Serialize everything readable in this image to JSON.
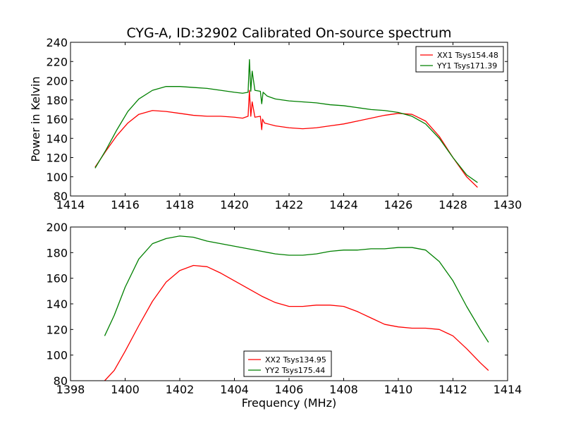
{
  "chart_data": [
    {
      "type": "line",
      "title": "CYG-A, ID:32902 Calibrated On-source spectrum",
      "xlabel": "",
      "ylabel": "Power in Kelvin",
      "xlim": [
        1414,
        1430
      ],
      "ylim": [
        80,
        240
      ],
      "xticks": [
        1414,
        1416,
        1418,
        1420,
        1422,
        1424,
        1426,
        1428,
        1430
      ],
      "yticks": [
        80,
        100,
        120,
        140,
        160,
        180,
        200,
        220,
        240
      ],
      "legend": "top-right",
      "series": [
        {
          "name": "XX1 Tsys154.48",
          "color": "#ff0000",
          "x": [
            1414.9,
            1415.3,
            1415.7,
            1416.1,
            1416.5,
            1417.0,
            1417.5,
            1418.0,
            1418.5,
            1419.0,
            1419.5,
            1420.0,
            1420.3,
            1420.5,
            1420.55,
            1420.6,
            1420.65,
            1420.75,
            1420.95,
            1421.0,
            1421.03,
            1421.1,
            1421.5,
            1422.0,
            1422.5,
            1423.0,
            1423.5,
            1424.0,
            1424.5,
            1425.0,
            1425.5,
            1426.0,
            1426.5,
            1427.0,
            1427.5,
            1428.0,
            1428.5,
            1428.9
          ],
          "y": [
            110,
            127,
            143,
            156,
            165,
            169,
            168,
            166,
            164,
            163,
            163,
            162,
            161,
            163,
            190,
            163,
            178,
            162,
            163,
            149,
            160,
            156,
            153,
            151,
            150,
            151,
            153,
            155,
            158,
            161,
            164,
            166,
            165,
            158,
            142,
            120,
            100,
            89
          ]
        },
        {
          "name": "YY1 Tsys171.39",
          "color": "#008000",
          "x": [
            1414.9,
            1415.3,
            1415.7,
            1416.1,
            1416.5,
            1417.0,
            1417.5,
            1418.0,
            1418.5,
            1419.0,
            1419.5,
            1420.0,
            1420.3,
            1420.5,
            1420.55,
            1420.6,
            1420.65,
            1420.75,
            1420.95,
            1421.0,
            1421.05,
            1421.2,
            1421.5,
            1422.0,
            1422.5,
            1423.0,
            1423.5,
            1424.0,
            1424.5,
            1425.0,
            1425.5,
            1426.0,
            1426.5,
            1427.0,
            1427.5,
            1428.0,
            1428.5,
            1428.9
          ],
          "y": [
            109,
            128,
            149,
            168,
            181,
            190,
            194,
            194,
            193,
            192,
            190,
            188,
            187,
            188,
            222,
            189,
            210,
            190,
            189,
            176,
            188,
            184,
            181,
            179,
            178,
            177,
            175,
            174,
            172,
            170,
            169,
            167,
            163,
            155,
            140,
            120,
            102,
            94
          ]
        }
      ]
    },
    {
      "type": "line",
      "title": "",
      "xlabel": "Frequency (MHz)",
      "ylabel": "",
      "xlim": [
        1398,
        1414
      ],
      "ylim": [
        80,
        200
      ],
      "xticks": [
        1398,
        1400,
        1402,
        1404,
        1406,
        1408,
        1410,
        1412,
        1414
      ],
      "yticks": [
        80,
        100,
        120,
        140,
        160,
        180,
        200
      ],
      "legend": "bottom-center",
      "series": [
        {
          "name": "XX2 Tsys134.95",
          "color": "#ff0000",
          "x": [
            1399.25,
            1399.6,
            1400.0,
            1400.5,
            1401.0,
            1401.5,
            1402.0,
            1402.5,
            1403.0,
            1403.5,
            1404.0,
            1404.5,
            1405.0,
            1405.5,
            1406.0,
            1406.5,
            1407.0,
            1407.5,
            1408.0,
            1408.5,
            1409.0,
            1409.5,
            1410.0,
            1410.5,
            1411.0,
            1411.5,
            1412.0,
            1412.5,
            1413.0,
            1413.3
          ],
          "y": [
            80,
            88,
            103,
            123,
            142,
            157,
            166,
            170,
            169,
            164,
            158,
            152,
            146,
            141,
            138,
            138,
            139,
            139,
            138,
            134,
            129,
            124,
            122,
            121,
            121,
            120,
            115,
            105,
            94,
            88
          ]
        },
        {
          "name": "YY2 Tsys175.44",
          "color": "#008000",
          "x": [
            1399.25,
            1399.6,
            1400.0,
            1400.5,
            1401.0,
            1401.5,
            1402.0,
            1402.5,
            1403.0,
            1403.5,
            1404.0,
            1404.5,
            1405.0,
            1405.5,
            1406.0,
            1406.5,
            1407.0,
            1407.5,
            1408.0,
            1408.5,
            1409.0,
            1409.5,
            1410.0,
            1410.5,
            1411.0,
            1411.5,
            1412.0,
            1412.5,
            1413.0,
            1413.3
          ],
          "y": [
            115,
            131,
            153,
            175,
            187,
            191,
            193,
            192,
            189,
            187,
            185,
            183,
            181,
            179,
            178,
            178,
            179,
            181,
            182,
            182,
            183,
            183,
            184,
            184,
            182,
            173,
            158,
            138,
            120,
            110
          ]
        }
      ]
    }
  ]
}
